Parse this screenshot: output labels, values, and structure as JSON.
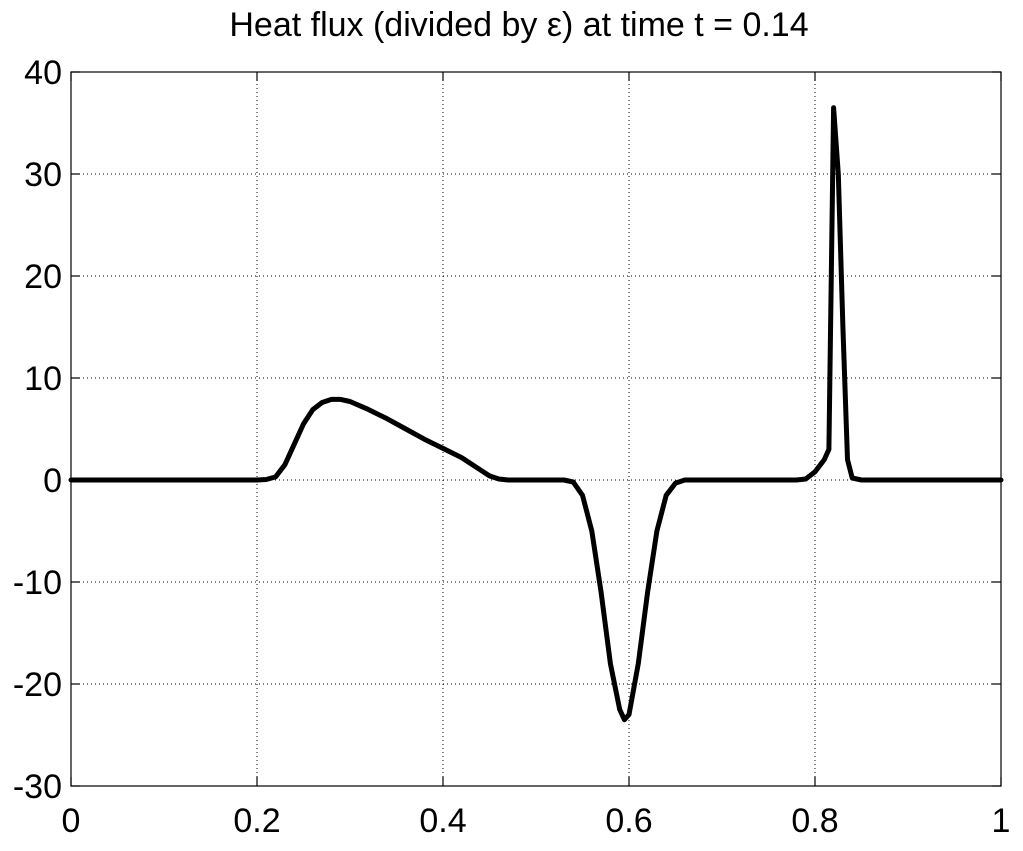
{
  "chart_data": {
    "type": "line",
    "title": "Heat flux (divided by ε) at time t = 0.14",
    "xlabel": "",
    "ylabel": "",
    "xlim": [
      0,
      1
    ],
    "ylim": [
      -30,
      40
    ],
    "xticks": [
      0,
      0.2,
      0.4,
      0.6,
      0.8,
      1
    ],
    "xtick_labels": [
      "0",
      "0.2",
      "0.4",
      "0.6",
      "0.8",
      "1"
    ],
    "yticks": [
      -30,
      -20,
      -10,
      0,
      10,
      20,
      30,
      40
    ],
    "ytick_labels": [
      "-30",
      "-20",
      "-10",
      "0",
      "10",
      "20",
      "30",
      "40"
    ],
    "grid": true,
    "series": [
      {
        "color": "#000000",
        "x": [
          0,
          0.1,
          0.2,
          0.21,
          0.22,
          0.23,
          0.24,
          0.25,
          0.26,
          0.27,
          0.28,
          0.29,
          0.3,
          0.32,
          0.34,
          0.36,
          0.38,
          0.4,
          0.42,
          0.44,
          0.45,
          0.46,
          0.47,
          0.5,
          0.53,
          0.54,
          0.55,
          0.56,
          0.57,
          0.58,
          0.59,
          0.595,
          0.6,
          0.61,
          0.62,
          0.63,
          0.64,
          0.65,
          0.66,
          0.7,
          0.75,
          0.78,
          0.79,
          0.8,
          0.81,
          0.815,
          0.82,
          0.825,
          0.83,
          0.835,
          0.84,
          0.85,
          0.9,
          1
        ],
        "y": [
          0,
          0,
          0,
          0.05,
          0.3,
          1.5,
          3.5,
          5.5,
          6.9,
          7.6,
          7.9,
          7.9,
          7.7,
          6.9,
          6.0,
          5.0,
          4.0,
          3.1,
          2.2,
          1.0,
          0.4,
          0.1,
          0,
          0,
          0,
          -0.2,
          -1.5,
          -5,
          -11,
          -18,
          -22.5,
          -23.5,
          -23,
          -18,
          -11,
          -5,
          -1.5,
          -0.3,
          0,
          0,
          0,
          0,
          0.1,
          0.8,
          2,
          3,
          36.5,
          30,
          15,
          2,
          0.2,
          0,
          0,
          0
        ]
      }
    ]
  }
}
